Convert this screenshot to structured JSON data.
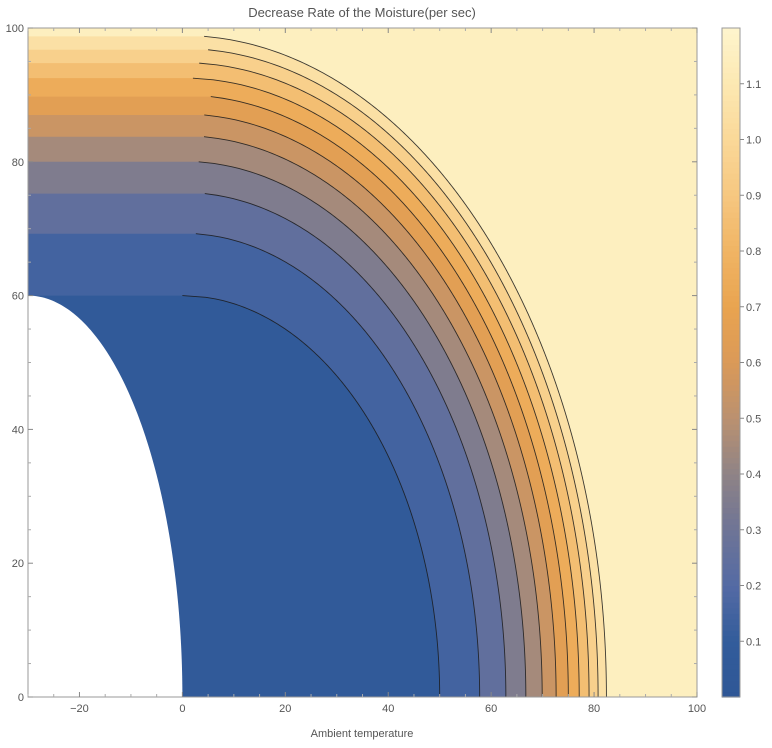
{
  "chart_data": {
    "type": "contour",
    "title": "Decrease Rate of the Moisture(per sec)",
    "xlabel": "Ambient temperature",
    "ylabel": "",
    "xlim": [
      -30,
      100
    ],
    "ylim": [
      0,
      100
    ],
    "x_ticks": [
      -20,
      0,
      20,
      40,
      60,
      80,
      100
    ],
    "y_ticks": [
      0,
      20,
      40,
      60,
      80,
      100
    ],
    "contour_levels": [
      0.1,
      0.2,
      0.3,
      0.4,
      0.5,
      0.6,
      0.7,
      0.8,
      0.9,
      1.0,
      1.1
    ],
    "colorbar": {
      "range": [
        0,
        1.2
      ],
      "ticks": [
        0.1,
        0.2,
        0.3,
        0.4,
        0.5,
        0.6,
        0.7,
        0.8,
        0.9,
        1.0,
        1.1
      ],
      "tick_labels": [
        "0.1",
        "0.2",
        "0.3",
        "0.4",
        "0.5",
        "0.6",
        "0.7",
        "0.8",
        "0.9",
        "1.0",
        "1.1"
      ]
    },
    "undefined_region": "x < 0 and (x/30)^2 + (y/60)^2 < 1",
    "colors": {
      "low": "#2f5b99",
      "mid_blue": "#5a6ca6",
      "mid_gray": "#8c8286",
      "orange": "#e9a24e",
      "high": "#fde9b0",
      "contour_line": "#1a1a1a"
    }
  }
}
